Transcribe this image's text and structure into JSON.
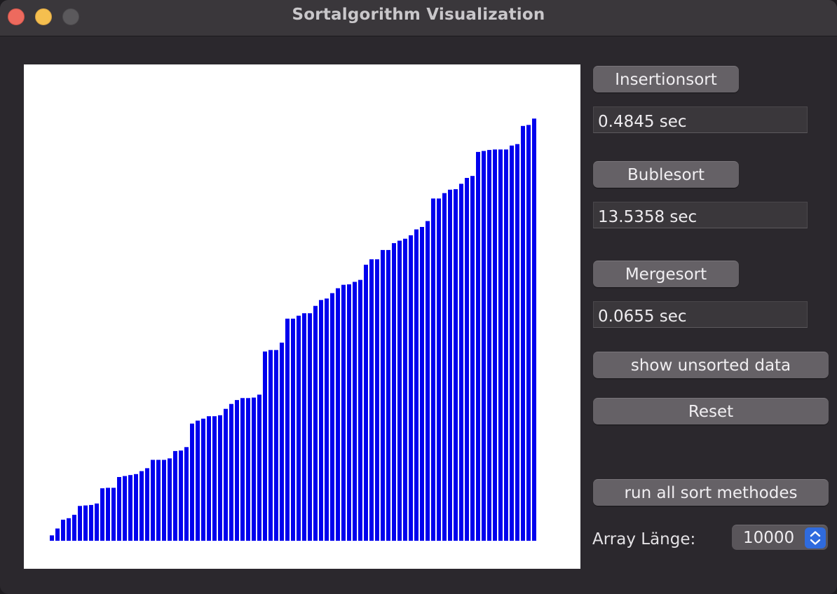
{
  "window": {
    "title": "Sortalgorithm Visualization"
  },
  "controls": {
    "insertion_label": "Insertionsort",
    "insertion_time": "0.4845 sec",
    "bubble_label": "Bublesort",
    "bubble_time": "13.5358 sec",
    "merge_label": "Mergesort",
    "merge_time": "0.0655 sec",
    "show_unsorted_label": "show unsorted data",
    "reset_label": "Reset",
    "run_all_label": "run all sort methodes",
    "array_length_label": "Array Länge:",
    "array_length_value": "10000"
  },
  "colors": {
    "bar": "#0000ee",
    "canvas": "#ffffff"
  },
  "icons": {
    "stepper": "chevron-up-down-icon"
  },
  "chart_data": {
    "type": "bar",
    "values": [
      1.1,
      2.5,
      4.3,
      4.6,
      5.3,
      7.1,
      7.2,
      7.3,
      7.6,
      10.7,
      10.8,
      10.8,
      13.0,
      13.2,
      13.4,
      13.6,
      14.2,
      14.8,
      16.5,
      16.5,
      16.5,
      16.8,
      18.3,
      18.4,
      19.1,
      23.9,
      24.5,
      24.9,
      25.4,
      25.4,
      25.6,
      26.9,
      27.9,
      28.7,
      29.1,
      29.1,
      29.2,
      29.8,
      38.6,
      38.9,
      38.9,
      40.4,
      45.3,
      45.3,
      45.9,
      46.4,
      46.4,
      47.9,
      49.1,
      49.4,
      50.5,
      51.5,
      52.2,
      52.3,
      52.8,
      53.2,
      56.3,
      57.4,
      57.4,
      59.3,
      59.3,
      60.7,
      61.2,
      61.6,
      62.3,
      63.5,
      64.0,
      65.2,
      69.8,
      69.8,
      70.9,
      71.6,
      71.7,
      72.8,
      74.0,
      74.4,
      79.3,
      79.5,
      79.7,
      79.8,
      79.8,
      79.8,
      80.6,
      80.9,
      84.6,
      84.8,
      86.1
    ]
  }
}
